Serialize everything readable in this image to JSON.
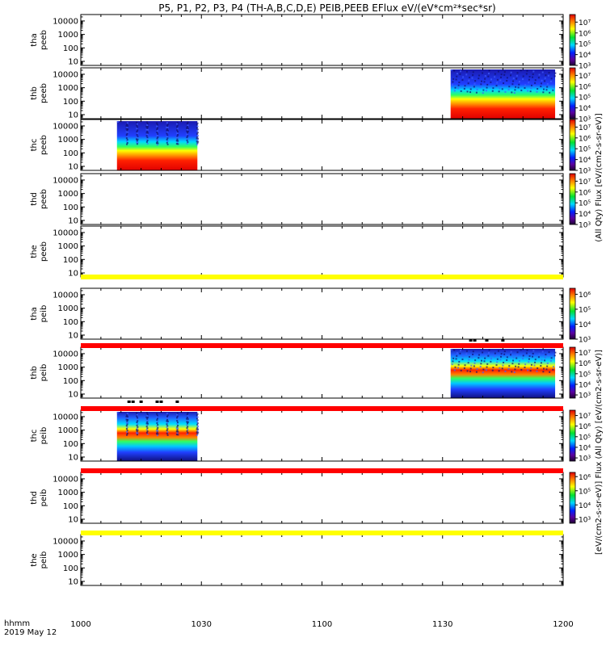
{
  "title": "P5, P1, P2, P3, P4 (TH-A,B,C,D,E) PEIB,PEEB EFlux eV/(eV*cm²*sec*sr)",
  "x_axis": {
    "title_line1": "hhmm",
    "title_line2": "2019 May 12",
    "tick_labels": [
      "1000",
      "1030",
      "1100",
      "1130",
      "1200"
    ]
  },
  "colorbar_labels": {
    "top": "(All Qty) Flux [eV/(cm2-s-sr-eV)]",
    "bottom": "[eV/(cm2-s-sr-eV)]  Flux (All Qty) [eV/(cm2-s-sr-eV)]"
  },
  "colors": {
    "electron_band": "#ffff00",
    "ion_band": "#ff0000",
    "axis": "#000000"
  },
  "chart_data": {
    "type": "heatmap",
    "x_unit": "time (UT, hhmm)",
    "x_range": [
      "10:00",
      "12:00"
    ],
    "y_unit": "energy (eV), log scale",
    "y_range": [
      5,
      30000
    ],
    "y_ticks": [
      10,
      100,
      1000,
      10000
    ],
    "colorscale": "rainbow (purple-blue-cyan-green-yellow-red)",
    "panels": [
      {
        "id": "tha_peeb",
        "label1": "tha",
        "label2": "peeb",
        "data_intervals": [],
        "colorbar_ticks": [
          {
            "e": 7,
            "v": "10⁷"
          },
          {
            "e": 6,
            "v": "10⁶"
          },
          {
            "e": 5,
            "v": "10⁵"
          },
          {
            "e": 4,
            "v": "10⁴"
          },
          {
            "e": 3,
            "v": "10³"
          }
        ],
        "cb_range": [
          3,
          7.7
        ],
        "status_band": ""
      },
      {
        "id": "thb_peeb",
        "label1": "thb",
        "label2": "peeb",
        "data_intervals": [
          {
            "start": "11:32",
            "end": "11:58",
            "species": "electron"
          }
        ],
        "colorbar_ticks": [
          {
            "e": 7,
            "v": "10⁷"
          },
          {
            "e": 6,
            "v": "10⁶"
          },
          {
            "e": 5,
            "v": "10⁵"
          },
          {
            "e": 4,
            "v": "10⁴"
          },
          {
            "e": 3,
            "v": "10³"
          }
        ],
        "cb_range": [
          3,
          7.7
        ],
        "status_band": ""
      },
      {
        "id": "thc_peeb",
        "label1": "thc",
        "label2": "peeb",
        "data_intervals": [
          {
            "start": "10:09",
            "end": "10:29",
            "species": "electron"
          }
        ],
        "colorbar_ticks": [
          {
            "e": 7,
            "v": "10⁷"
          },
          {
            "e": 6,
            "v": "10⁶"
          },
          {
            "e": 5,
            "v": "10⁵"
          },
          {
            "e": 4,
            "v": "10⁴"
          },
          {
            "e": 3,
            "v": "10³"
          }
        ],
        "cb_range": [
          3,
          7.7
        ],
        "status_band": ""
      },
      {
        "id": "thd_peeb",
        "label1": "thd",
        "label2": "peeb",
        "data_intervals": [],
        "colorbar_ticks": [
          {
            "e": 7,
            "v": "10⁷"
          },
          {
            "e": 6,
            "v": "10⁶"
          },
          {
            "e": 5,
            "v": "10⁵"
          },
          {
            "e": 4,
            "v": "10⁴"
          },
          {
            "e": 3,
            "v": "10³"
          }
        ],
        "cb_range": [
          3,
          7.7
        ],
        "status_band": ""
      },
      {
        "id": "the_peeb",
        "label1": "the",
        "label2": "peeb",
        "data_intervals": [],
        "colorbar_ticks": [],
        "status_band": "electron_band"
      },
      {
        "id": "tha_peib",
        "label1": "tha",
        "label2": "peib",
        "data_intervals": [],
        "colorbar_ticks": [
          {
            "e": 6,
            "v": "10⁶"
          },
          {
            "e": 5,
            "v": "10⁵"
          },
          {
            "e": 4,
            "v": "10⁴"
          },
          {
            "e": 3,
            "v": "10³"
          }
        ],
        "cb_range": [
          3,
          6.4
        ],
        "status_band": "ion_band",
        "markers": [
          "11:37",
          "11:38",
          "11:41",
          "11:45"
        ]
      },
      {
        "id": "thb_peib",
        "label1": "thb",
        "label2": "peib",
        "data_intervals": [
          {
            "start": "11:32",
            "end": "11:58",
            "species": "ion"
          }
        ],
        "colorbar_ticks": [
          {
            "e": 7,
            "v": "10⁷"
          },
          {
            "e": 6,
            "v": "10⁶"
          },
          {
            "e": 5,
            "v": "10⁵"
          },
          {
            "e": 4,
            "v": "10⁴"
          },
          {
            "e": 3,
            "v": "10³"
          }
        ],
        "cb_range": [
          2.7,
          7.5
        ],
        "status_band": "ion_band",
        "markers": [
          "10:12",
          "10:13",
          "10:15",
          "10:19",
          "10:20",
          "10:24"
        ]
      },
      {
        "id": "thc_peib",
        "label1": "thc",
        "label2": "peib",
        "data_intervals": [
          {
            "start": "10:09",
            "end": "10:29",
            "species": "ion"
          }
        ],
        "colorbar_ticks": [
          {
            "e": 7,
            "v": "10⁷"
          },
          {
            "e": 6,
            "v": "10⁶"
          },
          {
            "e": 5,
            "v": "10⁵"
          },
          {
            "e": 4,
            "v": "10⁴"
          },
          {
            "e": 3,
            "v": "10³"
          }
        ],
        "cb_range": [
          2.7,
          7.5
        ],
        "status_band": "ion_band"
      },
      {
        "id": "thd_peib",
        "label1": "thd",
        "label2": "peib",
        "data_intervals": [],
        "colorbar_ticks": [
          {
            "e": 6,
            "v": "10⁶"
          },
          {
            "e": 5,
            "v": "10⁵"
          },
          {
            "e": 4,
            "v": "10⁴"
          },
          {
            "e": 3,
            "v": "10³"
          }
        ],
        "cb_range": [
          2.7,
          6.3
        ],
        "status_band": "electron_band"
      },
      {
        "id": "the_peib",
        "label1": "the",
        "label2": "peib",
        "data_intervals": [],
        "colorbar_ticks": [],
        "status_band": ""
      }
    ]
  }
}
